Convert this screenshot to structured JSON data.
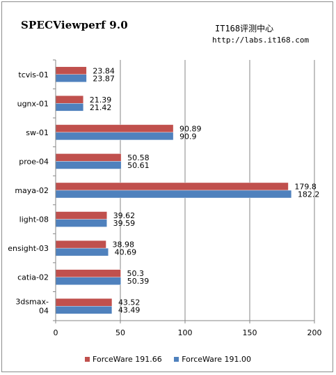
{
  "title": "SPECViewperf 9.0",
  "watermark": {
    "line1": "IT168评测中心",
    "line2": "http://labs.it168.com"
  },
  "colors": {
    "series1": "#c0504d",
    "series2": "#4f81bd",
    "grid": "#868686",
    "axis": "#868686"
  },
  "chart_data": {
    "type": "bar",
    "orientation": "horizontal",
    "categories": [
      "tcvis-01",
      "ugnx-01",
      "sw-01",
      "proe-04",
      "maya-02",
      "light-08",
      "ensight-03",
      "catia-02",
      "3dsmax-04"
    ],
    "category_display": [
      [
        "tcvis-01"
      ],
      [
        "ugnx-01"
      ],
      [
        "sw-01"
      ],
      [
        "proe-04"
      ],
      [
        "maya-02"
      ],
      [
        "light-08"
      ],
      [
        "ensight-03"
      ],
      [
        "catia-02"
      ],
      [
        "3dsmax-",
        "04"
      ]
    ],
    "series": [
      {
        "name": "ForceWare 191.66",
        "values": [
          23.84,
          21.39,
          90.89,
          50.58,
          179.8,
          39.62,
          38.98,
          50.3,
          43.52
        ],
        "labels": [
          "23.84",
          "21.39",
          "90.89",
          "50.58",
          "179.8",
          "39.62",
          "38.98",
          "50.3",
          "43.52"
        ]
      },
      {
        "name": "ForceWare 191.00",
        "values": [
          23.87,
          21.42,
          90.9,
          50.61,
          182.2,
          39.59,
          40.69,
          50.39,
          43.49
        ],
        "labels": [
          "23.87",
          "21.42",
          "90.9",
          "50.61",
          "182.2",
          "39.59",
          "40.69",
          "50.39",
          "43.49"
        ]
      }
    ],
    "xlim": [
      0,
      200
    ],
    "xticks": [
      0,
      50,
      100,
      150,
      200
    ],
    "title": "SPECViewperf 9.0",
    "xlabel": "",
    "ylabel": "",
    "grid": "vertical",
    "legend_position": "bottom"
  }
}
